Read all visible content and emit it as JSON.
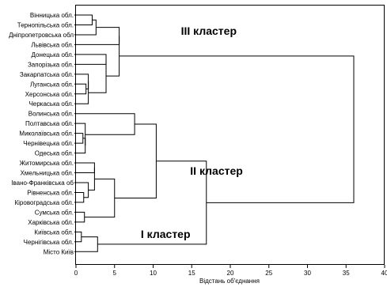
{
  "chart_data": {
    "type": "dendrogram",
    "orientation": "horizontal",
    "xlabel": "Відстань об'єднання",
    "xlim": [
      0,
      40
    ],
    "x_ticks": [
      0,
      5,
      10,
      15,
      20,
      25,
      30,
      35,
      40
    ],
    "x_tick_labels": [
      "0",
      "5",
      "10",
      "15",
      "20",
      "25",
      "30",
      "35",
      "40"
    ],
    "leaves": [
      "Вінницька обл.",
      "Тернопільська обл.",
      "Дніпропетровська обл",
      "Львівська обл.",
      "Донецька обл.",
      "Запорізька обл.",
      "Закарпатська обл.",
      "Луганська обл.",
      "Херсонська обл.",
      "Черкаська обл.",
      "Волинська обл.",
      "Полтавська обл.",
      "Миколаївська обл.",
      "Чернівецька обл.",
      "Одеська обл.",
      "Житомирська обл.",
      "Хмельницька обл.",
      "Івано-Франківська об",
      "Рівненська обл.",
      "Кіровоградська обл.",
      "Сумська обл.",
      "Харківська обл.",
      "Київська обл.",
      "Чернігівська обл.",
      "Місто Київ"
    ],
    "merges": [
      {
        "a": "L0",
        "b": "L1",
        "height": 2.1
      },
      {
        "a": "M0",
        "b": "L2",
        "height": 2.6
      },
      {
        "a": "M1",
        "b": "L3",
        "height": 5.6
      },
      {
        "a": "L4",
        "b": "L5",
        "height": 3.9
      },
      {
        "a": "L7",
        "b": "L8",
        "height": 1.3
      },
      {
        "a": "L6",
        "b": "M4",
        "height": 1.6
      },
      {
        "a": "M5",
        "b": "L9",
        "height": 1.6
      },
      {
        "a": "M3",
        "b": "M6",
        "height": 3.9
      },
      {
        "a": "M2",
        "b": "M7",
        "height": 5.6
      },
      {
        "a": "L12",
        "b": "L13",
        "height": 0.9
      },
      {
        "a": "M9",
        "b": "L14",
        "height": 1.2
      },
      {
        "a": "L11",
        "b": "M10",
        "height": 1.2
      },
      {
        "a": "L10",
        "b": "M11",
        "height": 7.6
      },
      {
        "a": "L18",
        "b": "L19",
        "height": 1.0
      },
      {
        "a": "L17",
        "b": "M13",
        "height": 1.6
      },
      {
        "a": "L15",
        "b": "L16",
        "height": 2.4
      },
      {
        "a": "M15",
        "b": "M14",
        "height": 2.4
      },
      {
        "a": "L20",
        "b": "L21",
        "height": 1.1
      },
      {
        "a": "M16",
        "b": "M17",
        "height": 5.0
      },
      {
        "a": "M12",
        "b": "M18",
        "height": 10.4
      },
      {
        "a": "L22",
        "b": "L23",
        "height": 0.7
      },
      {
        "a": "M20",
        "b": "L24",
        "height": 2.8
      },
      {
        "a": "M19",
        "b": "M21",
        "height": 16.9
      },
      {
        "a": "M8",
        "b": "M22",
        "height": 36.0
      }
    ],
    "annotations": [
      {
        "text": "III кластер",
        "x": 13.6,
        "y_leaf": 1.6
      },
      {
        "text": "II кластер",
        "x": 14.8,
        "y_leaf": 15.8
      },
      {
        "text": "I кластер",
        "x": 8.4,
        "y_leaf": 22.2
      }
    ]
  }
}
